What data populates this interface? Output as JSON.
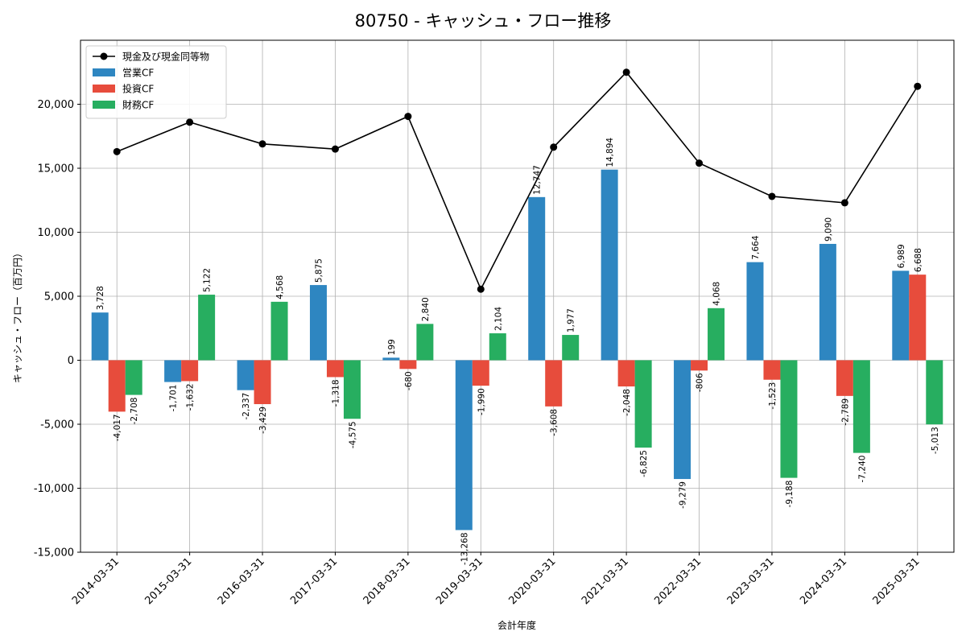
{
  "chart_data": {
    "type": "bar",
    "title": "80750 - キャッシュ・フロー推移",
    "xlabel": "会計年度",
    "ylabel": "キャッシュ・フロー（百万円）",
    "ylim": [
      -15000,
      25000
    ],
    "yticks": [
      -15000,
      -10000,
      -5000,
      0,
      5000,
      10000,
      15000,
      20000
    ],
    "ytick_labels": [
      "-15,000",
      "-10,000",
      "-5,000",
      "0",
      "5,000",
      "10,000",
      "15,000",
      "20,000"
    ],
    "grid": true,
    "legend_position": "top-left",
    "categories": [
      "2014-03-31",
      "2015-03-31",
      "2016-03-31",
      "2017-03-31",
      "2018-03-31",
      "2019-03-31",
      "2020-03-31",
      "2021-03-31",
      "2022-03-31",
      "2023-03-31",
      "2024-03-31",
      "2025-03-31"
    ],
    "series": [
      {
        "name": "営業CF",
        "kind": "bar",
        "color": "#2e86c1",
        "values": [
          3728,
          -1701,
          -2337,
          5875,
          199,
          -13268,
          12747,
          14894,
          -9279,
          7664,
          9090,
          6989
        ],
        "labels": [
          "3,728",
          "-1,701",
          "-2,337",
          "5,875",
          "199",
          "-13,268",
          "12,747",
          "14,894",
          "-9,279",
          "7,664",
          "9,090",
          "6,989"
        ]
      },
      {
        "name": "投資CF",
        "kind": "bar",
        "color": "#e74c3c",
        "values": [
          -4017,
          -1632,
          -3429,
          -1318,
          -680,
          -1990,
          -3608,
          -2048,
          -806,
          -1523,
          -2789,
          6688
        ],
        "labels": [
          "-4,017",
          "-1,632",
          "-3,429",
          "-1,318",
          "-680",
          "-1,990",
          "-3,608",
          "-2,048",
          "-806",
          "-1,523",
          "-2,789",
          "6,688"
        ]
      },
      {
        "name": "財務CF",
        "kind": "bar",
        "color": "#27ae60",
        "values": [
          -2708,
          5122,
          4568,
          -4575,
          2840,
          2104,
          1977,
          -6825,
          4068,
          -9188,
          -7240,
          -5013
        ],
        "labels": [
          "-2,708",
          "5,122",
          "4,568",
          "-4,575",
          "2,840",
          "2,104",
          "1,977",
          "-6,825",
          "4,068",
          "-9,188",
          "-7,240",
          "-5,013"
        ]
      },
      {
        "name": "現金及び現金同等物",
        "kind": "line",
        "color": "#000000",
        "values": [
          16300,
          18600,
          16900,
          16500,
          19050,
          5550,
          16650,
          22500,
          15400,
          12800,
          12300,
          21400
        ]
      }
    ]
  }
}
